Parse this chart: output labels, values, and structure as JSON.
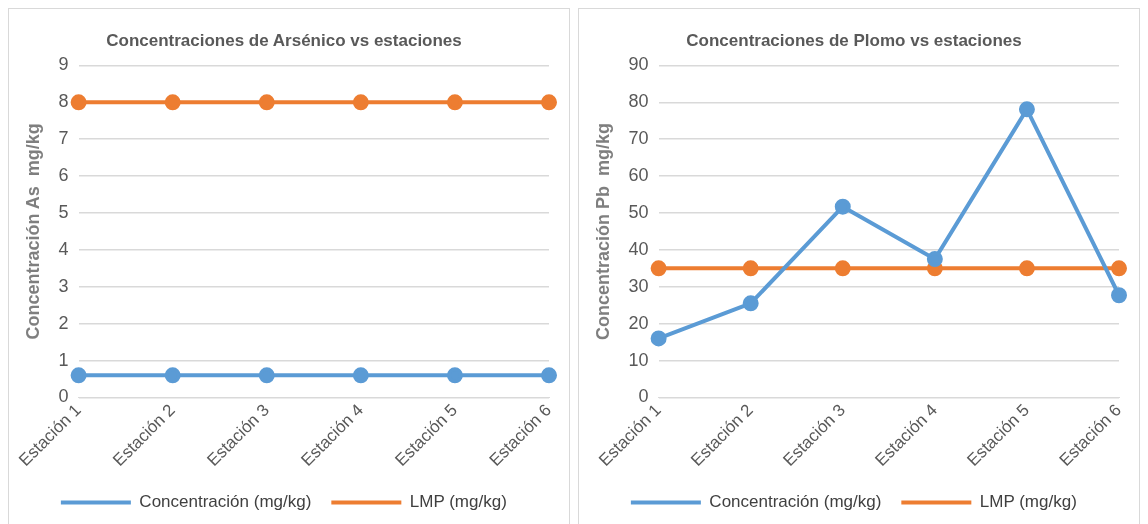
{
  "chart_data": [
    {
      "type": "line",
      "title": "Concentraciones de Arsénico vs estaciones",
      "ylabel": "Concentración As  mg/kg",
      "categories": [
        "Estación 1",
        "Estación 2",
        "Estación 3",
        "Estación 4",
        "Estación 5",
        "Estación 6"
      ],
      "series": [
        {
          "name": "Concentración (mg/kg)",
          "color": "#5b9bd5",
          "values": [
            0.6,
            0.6,
            0.6,
            0.6,
            0.6,
            0.6
          ]
        },
        {
          "name": "LMP (mg/kg)",
          "color": "#ed7d31",
          "values": [
            8,
            8,
            8,
            8,
            8,
            8
          ]
        }
      ],
      "ylim": [
        0,
        9
      ],
      "yticks": [
        0,
        1,
        2,
        3,
        4,
        5,
        6,
        7,
        8,
        9
      ],
      "grid": "y",
      "legend": "bottom",
      "marker": "circle",
      "line_style": "solid"
    },
    {
      "type": "line",
      "title": "Concentraciones de Plomo vs estaciones",
      "ylabel": "Concentración Pb  mg/kg",
      "categories": [
        "Estación 1",
        "Estación 2",
        "Estación 3",
        "Estación 4",
        "Estación 5",
        "Estación 6"
      ],
      "series": [
        {
          "name": "Concentración (mg/kg)",
          "color": "#5b9bd5",
          "values": [
            16,
            25.5,
            51.7,
            37.5,
            78.1,
            27.7
          ]
        },
        {
          "name": "LMP (mg/kg)",
          "color": "#ed7d31",
          "values": [
            35,
            35,
            35,
            35,
            35,
            35
          ]
        }
      ],
      "ylim": [
        0,
        90
      ],
      "yticks": [
        0,
        10,
        20,
        30,
        40,
        50,
        60,
        70,
        80,
        90
      ],
      "grid": "y",
      "legend": "bottom",
      "marker": "circle",
      "line_style": "solid"
    }
  ]
}
